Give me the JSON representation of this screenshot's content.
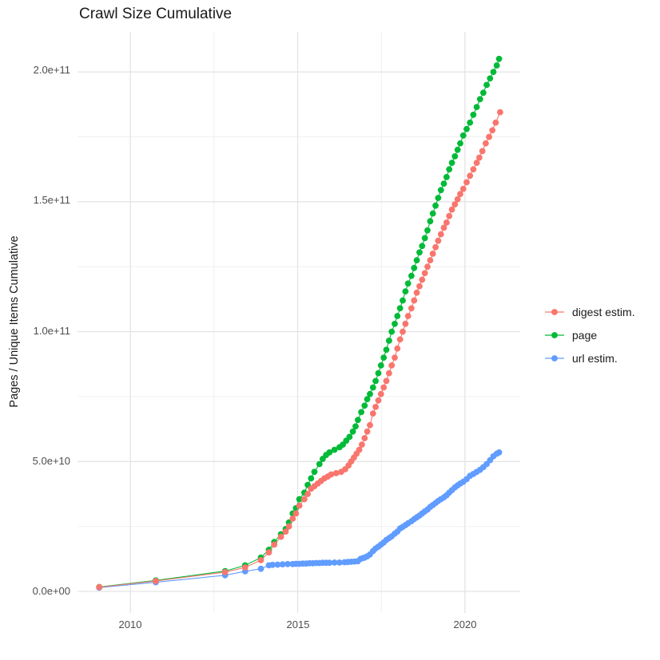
{
  "title": "Crawl Size Cumulative",
  "legend": {
    "items": [
      {
        "label": "digest estim.",
        "color": "#f8766d"
      },
      {
        "label": "page",
        "color": "#00ba38"
      },
      {
        "label": "url estim.",
        "color": "#619cff"
      }
    ]
  },
  "chart_data": {
    "type": "line",
    "title": "Crawl Size Cumulative",
    "xlabel": "",
    "ylabel": "Pages / Unique Items Cumulative",
    "value_unit": "billions (1e9)",
    "grid": "major+minor",
    "legend_position": "right",
    "xlim": [
      2008.42,
      2021.65
    ],
    "ylim_billions": [
      -8.3,
      215.4
    ],
    "colors": {
      "grid_major": "#e4e4e4",
      "grid_minor": "#f0f0f0",
      "tick_text": "#4d4d4d",
      "title_text": "#1a1a1a"
    },
    "x_ticks": {
      "major": [
        2010,
        2015,
        2020
      ],
      "minor": [
        2012.5,
        2017.5
      ],
      "labels": [
        "2010",
        "2015",
        "2020"
      ]
    },
    "y_ticks": {
      "major_billions": [
        0,
        50,
        100,
        150,
        200
      ],
      "minor_billions": [
        25,
        75,
        125,
        175
      ],
      "labels": [
        "0.0e+00",
        "5.0e+10",
        "1.0e+11",
        "1.5e+11",
        "2.0e+11"
      ]
    },
    "draw_order": [
      1,
      2,
      0
    ],
    "series": [
      {
        "id": "digest",
        "name": "digest estim.",
        "color": "#f8766d",
        "points": [
          [
            2009.07,
            1.6
          ],
          [
            2010.76,
            4
          ],
          [
            2012.83,
            7.4
          ],
          [
            2013.43,
            9.2
          ],
          [
            2013.9,
            12
          ],
          [
            2014.14,
            15
          ],
          [
            2014.3,
            18
          ],
          [
            2014.5,
            21
          ],
          [
            2014.64,
            23
          ],
          [
            2014.74,
            25
          ],
          [
            2014.85,
            28
          ],
          [
            2014.95,
            30
          ],
          [
            2015.05,
            33
          ],
          [
            2015.2,
            35.5
          ],
          [
            2015.3,
            37.5
          ],
          [
            2015.4,
            39.5
          ],
          [
            2015.5,
            40.5
          ],
          [
            2015.6,
            41.5
          ],
          [
            2015.7,
            42.5
          ],
          [
            2015.8,
            43.5
          ],
          [
            2015.9,
            44.2
          ],
          [
            2016.0,
            45
          ],
          [
            2016.15,
            45.5
          ],
          [
            2016.3,
            46
          ],
          [
            2016.42,
            47
          ],
          [
            2016.52,
            48.5
          ],
          [
            2016.6,
            50
          ],
          [
            2016.68,
            51.5
          ],
          [
            2016.76,
            53
          ],
          [
            2016.84,
            54.5
          ],
          [
            2016.92,
            56.5
          ],
          [
            2017.0,
            59
          ],
          [
            2017.08,
            61.5
          ],
          [
            2017.16,
            64
          ],
          [
            2017.25,
            68.5
          ],
          [
            2017.33,
            71
          ],
          [
            2017.41,
            73.5
          ],
          [
            2017.49,
            76
          ],
          [
            2017.57,
            78.5
          ],
          [
            2017.65,
            81
          ],
          [
            2017.73,
            84
          ],
          [
            2017.81,
            87
          ],
          [
            2017.9,
            90
          ],
          [
            2017.98,
            93.5
          ],
          [
            2018.06,
            97
          ],
          [
            2018.14,
            100
          ],
          [
            2018.22,
            103
          ],
          [
            2018.3,
            106
          ],
          [
            2018.4,
            109
          ],
          [
            2018.48,
            112
          ],
          [
            2018.56,
            115
          ],
          [
            2018.64,
            117.5
          ],
          [
            2018.72,
            120
          ],
          [
            2018.8,
            122.5
          ],
          [
            2018.88,
            125
          ],
          [
            2018.96,
            127.5
          ],
          [
            2019.04,
            130
          ],
          [
            2019.12,
            132.5
          ],
          [
            2019.2,
            135
          ],
          [
            2019.28,
            137.5
          ],
          [
            2019.37,
            140
          ],
          [
            2019.45,
            142
          ],
          [
            2019.53,
            144.5
          ],
          [
            2019.61,
            147
          ],
          [
            2019.7,
            149
          ],
          [
            2019.78,
            151
          ],
          [
            2019.86,
            153
          ],
          [
            2019.95,
            155
          ],
          [
            2020.05,
            157.5
          ],
          [
            2020.15,
            160
          ],
          [
            2020.25,
            162.5
          ],
          [
            2020.35,
            165
          ],
          [
            2020.43,
            167
          ],
          [
            2020.52,
            169.5
          ],
          [
            2020.62,
            172.5
          ],
          [
            2020.72,
            175
          ],
          [
            2020.82,
            177.5
          ],
          [
            2020.92,
            180.5
          ],
          [
            2021.05,
            184.5
          ]
        ]
      },
      {
        "id": "page",
        "name": "page",
        "color": "#00ba38",
        "points": [
          [
            2009.07,
            1.7
          ],
          [
            2010.76,
            4.2
          ],
          [
            2012.83,
            7.8
          ],
          [
            2013.43,
            10
          ],
          [
            2013.9,
            13
          ],
          [
            2014.14,
            16
          ],
          [
            2014.3,
            19
          ],
          [
            2014.5,
            22
          ],
          [
            2014.64,
            24
          ],
          [
            2014.74,
            26.5
          ],
          [
            2014.85,
            30
          ],
          [
            2014.95,
            32
          ],
          [
            2015.05,
            35.5
          ],
          [
            2015.2,
            38
          ],
          [
            2015.3,
            41
          ],
          [
            2015.4,
            43.5
          ],
          [
            2015.5,
            46
          ],
          [
            2015.65,
            49
          ],
          [
            2015.75,
            51
          ],
          [
            2015.85,
            52.5
          ],
          [
            2015.95,
            53.5
          ],
          [
            2016.1,
            54.5
          ],
          [
            2016.25,
            55.5
          ],
          [
            2016.35,
            56.5
          ],
          [
            2016.45,
            58
          ],
          [
            2016.55,
            59.5
          ],
          [
            2016.65,
            61.5
          ],
          [
            2016.73,
            63.5
          ],
          [
            2016.8,
            66
          ],
          [
            2016.9,
            69
          ],
          [
            2017.0,
            71.5
          ],
          [
            2017.08,
            74
          ],
          [
            2017.16,
            76
          ],
          [
            2017.25,
            78.5
          ],
          [
            2017.33,
            81
          ],
          [
            2017.41,
            84
          ],
          [
            2017.49,
            87
          ],
          [
            2017.57,
            90
          ],
          [
            2017.65,
            93
          ],
          [
            2017.73,
            96.5
          ],
          [
            2017.81,
            100
          ],
          [
            2017.9,
            103
          ],
          [
            2017.98,
            106
          ],
          [
            2018.06,
            109
          ],
          [
            2018.14,
            112
          ],
          [
            2018.22,
            115.5
          ],
          [
            2018.3,
            118.5
          ],
          [
            2018.4,
            121.5
          ],
          [
            2018.48,
            124.5
          ],
          [
            2018.56,
            127.5
          ],
          [
            2018.64,
            130.5
          ],
          [
            2018.72,
            133
          ],
          [
            2018.8,
            136
          ],
          [
            2018.88,
            139
          ],
          [
            2018.96,
            142.5
          ],
          [
            2019.04,
            145.5
          ],
          [
            2019.12,
            148.5
          ],
          [
            2019.2,
            151.5
          ],
          [
            2019.28,
            154.5
          ],
          [
            2019.37,
            157
          ],
          [
            2019.45,
            159.5
          ],
          [
            2019.53,
            162.5
          ],
          [
            2019.61,
            165
          ],
          [
            2019.7,
            167.5
          ],
          [
            2019.78,
            170
          ],
          [
            2019.86,
            172.5
          ],
          [
            2019.95,
            175.5
          ],
          [
            2020.05,
            178
          ],
          [
            2020.15,
            180.5
          ],
          [
            2020.25,
            183.5
          ],
          [
            2020.35,
            186.5
          ],
          [
            2020.45,
            189.5
          ],
          [
            2020.55,
            192
          ],
          [
            2020.65,
            195
          ],
          [
            2020.75,
            197.5
          ],
          [
            2020.85,
            200
          ],
          [
            2020.95,
            202.5
          ],
          [
            2021.02,
            205
          ]
        ]
      },
      {
        "id": "url",
        "name": "url estim.",
        "color": "#619cff",
        "points": [
          [
            2009.07,
            1.4
          ],
          [
            2010.76,
            3.5
          ],
          [
            2012.83,
            6.2
          ],
          [
            2013.43,
            7.7
          ],
          [
            2013.9,
            8.7
          ],
          [
            2014.14,
            10
          ],
          [
            2014.25,
            10.2
          ],
          [
            2014.4,
            10.3
          ],
          [
            2014.55,
            10.4
          ],
          [
            2014.7,
            10.5
          ],
          [
            2014.85,
            10.5
          ],
          [
            2014.95,
            10.6
          ],
          [
            2015.05,
            10.6
          ],
          [
            2015.15,
            10.7
          ],
          [
            2015.25,
            10.7
          ],
          [
            2015.35,
            10.8
          ],
          [
            2015.45,
            10.8
          ],
          [
            2015.55,
            10.9
          ],
          [
            2015.65,
            10.9
          ],
          [
            2015.75,
            11
          ],
          [
            2015.85,
            11
          ],
          [
            2015.95,
            11
          ],
          [
            2016.1,
            11.1
          ],
          [
            2016.25,
            11.1
          ],
          [
            2016.4,
            11.2
          ],
          [
            2016.5,
            11.3
          ],
          [
            2016.6,
            11.4
          ],
          [
            2016.7,
            11.5
          ],
          [
            2016.8,
            11.6
          ],
          [
            2016.88,
            12.5
          ],
          [
            2016.95,
            12.8
          ],
          [
            2017.0,
            13
          ],
          [
            2017.08,
            13.5
          ],
          [
            2017.16,
            14.2
          ],
          [
            2017.25,
            15.5
          ],
          [
            2017.33,
            16.5
          ],
          [
            2017.41,
            17.2
          ],
          [
            2017.49,
            18
          ],
          [
            2017.57,
            18.8
          ],
          [
            2017.65,
            19.8
          ],
          [
            2017.73,
            20.5
          ],
          [
            2017.81,
            21.2
          ],
          [
            2017.9,
            22.2
          ],
          [
            2017.98,
            23
          ],
          [
            2018.06,
            24.2
          ],
          [
            2018.14,
            24.8
          ],
          [
            2018.22,
            25.5
          ],
          [
            2018.3,
            26.2
          ],
          [
            2018.4,
            27
          ],
          [
            2018.48,
            27.8
          ],
          [
            2018.56,
            28.5
          ],
          [
            2018.64,
            29.2
          ],
          [
            2018.72,
            30
          ],
          [
            2018.8,
            30.8
          ],
          [
            2018.88,
            31.5
          ],
          [
            2018.96,
            32.5
          ],
          [
            2019.04,
            33.2
          ],
          [
            2019.12,
            34
          ],
          [
            2019.2,
            34.8
          ],
          [
            2019.28,
            35.5
          ],
          [
            2019.37,
            36.2
          ],
          [
            2019.45,
            37
          ],
          [
            2019.53,
            38
          ],
          [
            2019.61,
            39
          ],
          [
            2019.7,
            40
          ],
          [
            2019.78,
            40.8
          ],
          [
            2019.86,
            41.5
          ],
          [
            2019.95,
            42.2
          ],
          [
            2020.05,
            43.2
          ],
          [
            2020.15,
            44.5
          ],
          [
            2020.25,
            45.2
          ],
          [
            2020.35,
            46
          ],
          [
            2020.45,
            46.8
          ],
          [
            2020.55,
            47.8
          ],
          [
            2020.65,
            49
          ],
          [
            2020.75,
            50.5
          ],
          [
            2020.85,
            52
          ],
          [
            2020.95,
            53
          ],
          [
            2021.02,
            53.5
          ]
        ]
      }
    ]
  }
}
